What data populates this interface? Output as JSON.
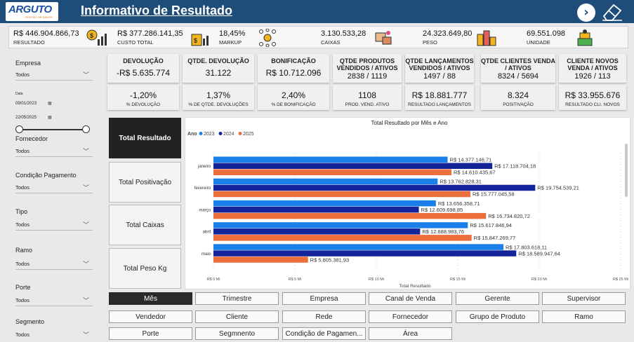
{
  "header": {
    "logo_text": "ARGUTO",
    "logo_sub": "GESTÃO DE DADOS",
    "title": "Informativo de Resultado"
  },
  "kpis": [
    {
      "value": "R$ 446.904.866,73",
      "label": "RESULTADO",
      "icon": "money-chart-icon"
    },
    {
      "value": "R$ 377.286.141,35",
      "label": "CUSTO TOTAL",
      "icon": "cost-chart-icon"
    },
    {
      "value": "18,45%",
      "label": "MARKUP",
      "icon": "network-icon"
    },
    {
      "value": "3.130.533,28",
      "label": "CAIXAS",
      "icon": "boxes-icon"
    },
    {
      "value": "24.323.649,80",
      "label": "PESO",
      "icon": "weight-icon"
    },
    {
      "value": "69.551.098",
      "label": "UNIDADE",
      "icon": "stack-icon"
    }
  ],
  "filters": {
    "empresa": {
      "label": "Empresa",
      "value": "Todos"
    },
    "data": {
      "label": "Data",
      "start": "09/01/2023",
      "end": "22/05/2025"
    },
    "fornecedor": {
      "label": "Fornecedor",
      "value": "Todos"
    },
    "condicao": {
      "label": "Condição Pagamento",
      "value": "Todos"
    },
    "tipo": {
      "label": "Tipo",
      "value": "Todos"
    },
    "ramo": {
      "label": "Ramo",
      "value": "Todos"
    },
    "porte": {
      "label": "Porte",
      "value": "Todos"
    },
    "segmento": {
      "label": "Segmento",
      "value": "Todos"
    }
  },
  "cards_top": [
    {
      "title": "DEVOLUÇÃO",
      "value": "-R$ 5.635.774",
      "value2": ""
    },
    {
      "title": "QTDE. DEVOLUÇÃO",
      "value": "31.122",
      "value2": ""
    },
    {
      "title": "BONIFICAÇÃO",
      "value": "R$ 10.712.096",
      "value2": ""
    },
    {
      "title": "QTDE PRODUTOS VENDIDOS / ATIVOS",
      "value": "",
      "value2": "2838 / 1119"
    },
    {
      "title": "QTDE LANÇAMENTOS VENDIDOS / ATIVOS",
      "value": "",
      "value2": "1497 / 88"
    },
    {
      "title": "QTDE CLIENTES VENDA / ATIVOS",
      "value": "",
      "value2": "8324 / 5694"
    },
    {
      "title": "CLIENTE NOVOS VENDA / ATIVOS",
      "value": "",
      "value2": "1926 / 113"
    }
  ],
  "cards_bottom": [
    {
      "value": "-1,20%",
      "label": "% DEVOLUÇÃO"
    },
    {
      "value": "1,37%",
      "label": "% DE QTDE. DEVOLUÇÕES"
    },
    {
      "value": "2,40%",
      "label": "% DE BONIFICAÇÃO"
    },
    {
      "value": "1108",
      "label": "PROD. VEND. ATIVO"
    },
    {
      "value": "R$ 18.881.777",
      "label": "RESULTADO LANÇAMENTOS"
    },
    {
      "value": "8.324",
      "label": "POSITIVAÇÃO"
    },
    {
      "value": "R$ 33.955.676",
      "label": "RESULTADO CLI. NOVOS"
    }
  ],
  "measures": [
    {
      "label": "Total Resultado",
      "active": true
    },
    {
      "label": "Total Positivação",
      "active": false
    },
    {
      "label": "Total Caixas",
      "active": false
    },
    {
      "label": "Total Peso Kg",
      "active": false
    }
  ],
  "groupings": [
    {
      "label": "Mês",
      "active": true
    },
    {
      "label": "Trimestre",
      "active": false
    },
    {
      "label": "Empresa",
      "active": false
    },
    {
      "label": "Canal de Venda",
      "active": false
    },
    {
      "label": "Gerente",
      "active": false
    },
    {
      "label": "Supervisor",
      "active": false
    },
    {
      "label": "Vendedor",
      "active": false
    },
    {
      "label": "Cliente",
      "active": false
    },
    {
      "label": "Rede",
      "active": false
    },
    {
      "label": "Fornecedor",
      "active": false
    },
    {
      "label": "Grupo de Produto",
      "active": false
    },
    {
      "label": "Ramo",
      "active": false
    },
    {
      "label": "Porte",
      "active": false
    },
    {
      "label": "Segmnento",
      "active": false
    },
    {
      "label": "Condição de Pagamen...",
      "active": false
    },
    {
      "label": "Área",
      "active": false
    }
  ],
  "chart_data": {
    "type": "bar",
    "orientation": "horizontal",
    "title": "Total Resultado por Mês e Ano",
    "legend_title": "Ano",
    "legend_position": "top-left",
    "xlabel": "Total Resultado",
    "ylabel": "",
    "xlim": [
      0,
      25
    ],
    "x_unit": "Mi",
    "x_ticks": [
      "R$ 0 Mi",
      "R$ 5 Mi",
      "R$ 10 Mi",
      "R$ 15 Mi",
      "R$ 20 Mi",
      "R$ 25 Mi"
    ],
    "categories": [
      "janeiro",
      "fevereiro",
      "março",
      "abril",
      "maio"
    ],
    "series": [
      {
        "name": "2023",
        "color": "#1a7fe8",
        "values": [
          14377146.71,
          13762828.31,
          13656358.71,
          15617846.94,
          17803618.11
        ],
        "labels": [
          "R$ 14.377.146,71",
          "R$ 13.762.828,31",
          "R$ 13.656.358,71",
          "R$ 15.617.846,94",
          "R$ 17.803.618,11"
        ]
      },
      {
        "name": "2024",
        "color": "#13249a",
        "values": [
          17118704.18,
          19754539.21,
          12609698.85,
          12688983.76,
          18589947.64
        ],
        "labels": [
          "R$ 17.118.704,18",
          "R$ 19.754.539,21",
          "R$ 12.609.698,85",
          "R$ 12.688.983,76",
          "R$ 18.589.947,64"
        ]
      },
      {
        "name": "2025",
        "color": "#ec6f3b",
        "values": [
          14610435.67,
          15777045.58,
          16734820.72,
          15847269.77,
          5805381.93
        ],
        "labels": [
          "R$ 14.610.435,67",
          "R$ 15.777.045,58",
          "R$ 16.734.820,72",
          "R$ 15.847.269,77",
          "R$ 5.805.381,93"
        ]
      }
    ],
    "grid": true
  },
  "colors": {
    "header": "#1f4d7a",
    "active_button": "#222222",
    "bar_2023": "#1a7fe8",
    "bar_2024": "#13249a",
    "bar_2025": "#ec6f3b"
  }
}
